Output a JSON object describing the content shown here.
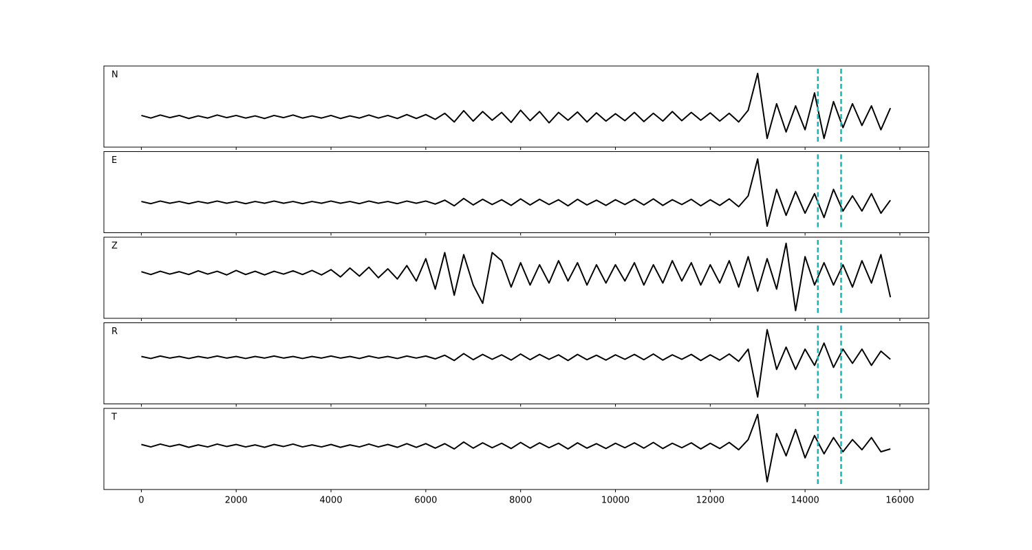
{
  "chart_data": {
    "type": "line",
    "x": [
      0,
      200,
      400,
      600,
      800,
      1000,
      1200,
      1400,
      1600,
      1800,
      2000,
      2200,
      2400,
      2600,
      2800,
      3000,
      3200,
      3400,
      3600,
      3800,
      4000,
      4200,
      4400,
      4600,
      4800,
      5000,
      5200,
      5400,
      5600,
      5800,
      6000,
      6200,
      6400,
      6600,
      6800,
      7000,
      7200,
      7400,
      7600,
      7800,
      8000,
      8200,
      8400,
      8600,
      8800,
      9000,
      9200,
      9400,
      9600,
      9800,
      10000,
      10200,
      10400,
      10600,
      10800,
      11000,
      11200,
      11400,
      11600,
      11800,
      12000,
      12200,
      12400,
      12600,
      12800,
      13000,
      13200,
      13400,
      13600,
      13800,
      14000,
      14200,
      14400,
      14600,
      14800,
      15000,
      15200,
      15400,
      15600,
      15800
    ],
    "xlim": [
      -790,
      16610
    ],
    "xticks": [
      0,
      2000,
      4000,
      6000,
      8000,
      10000,
      12000,
      14000,
      16000
    ],
    "vlines": [
      14270,
      14760
    ],
    "vline_color": "#00bfbf",
    "series": [
      {
        "name": "N",
        "color": "#000000",
        "ylim": [
          -0.7,
          1.17
        ],
        "values": [
          0.03,
          -0.03,
          0.04,
          -0.02,
          0.03,
          -0.04,
          0.02,
          -0.03,
          0.04,
          -0.02,
          0.03,
          -0.03,
          0.02,
          -0.04,
          0.03,
          -0.02,
          0.04,
          -0.03,
          0.02,
          -0.03,
          0.03,
          -0.04,
          0.02,
          -0.03,
          0.04,
          -0.03,
          0.03,
          -0.04,
          0.05,
          -0.04,
          0.05,
          -0.06,
          0.08,
          -0.12,
          0.14,
          -0.1,
          0.12,
          -0.08,
          0.1,
          -0.13,
          0.15,
          -0.09,
          0.12,
          -0.14,
          0.1,
          -0.08,
          0.11,
          -0.12,
          0.09,
          -0.1,
          0.07,
          -0.09,
          0.1,
          -0.11,
          0.08,
          -0.1,
          0.12,
          -0.09,
          0.1,
          -0.08,
          0.09,
          -0.1,
          0.08,
          -0.12,
          0.15,
          1.0,
          -0.5,
          0.3,
          -0.35,
          0.25,
          -0.3,
          0.55,
          -0.5,
          0.35,
          -0.25,
          0.3,
          -0.2,
          0.25,
          -0.3,
          0.2
        ]
      },
      {
        "name": "E",
        "color": "#000000",
        "ylim": [
          -0.7,
          1.17
        ],
        "values": [
          0.02,
          -0.03,
          0.03,
          -0.02,
          0.02,
          -0.03,
          0.02,
          -0.02,
          0.03,
          -0.02,
          0.02,
          -0.03,
          0.02,
          -0.02,
          0.03,
          -0.02,
          0.02,
          -0.03,
          0.02,
          -0.02,
          0.03,
          -0.02,
          0.02,
          -0.03,
          0.03,
          -0.02,
          0.02,
          -0.03,
          0.03,
          -0.02,
          0.03,
          -0.04,
          0.05,
          -0.08,
          0.09,
          -0.06,
          0.07,
          -0.05,
          0.06,
          -0.07,
          0.08,
          -0.06,
          0.07,
          -0.05,
          0.06,
          -0.08,
          0.07,
          -0.06,
          0.05,
          -0.07,
          0.06,
          -0.05,
          0.07,
          -0.06,
          0.08,
          -0.07,
          0.06,
          -0.05,
          0.07,
          -0.08,
          0.06,
          -0.07,
          0.08,
          -0.1,
          0.15,
          1.0,
          -0.55,
          0.3,
          -0.3,
          0.25,
          -0.25,
          0.2,
          -0.35,
          0.3,
          -0.2,
          0.15,
          -0.2,
          0.2,
          -0.25,
          0.05
        ]
      },
      {
        "name": "Z",
        "color": "#000000",
        "ylim": [
          -1.12,
          0.88
        ],
        "values": [
          0.03,
          -0.04,
          0.04,
          -0.03,
          0.03,
          -0.04,
          0.05,
          -0.03,
          0.04,
          -0.05,
          0.06,
          -0.04,
          0.04,
          -0.05,
          0.04,
          -0.03,
          0.05,
          -0.04,
          0.06,
          -0.05,
          0.08,
          -0.1,
          0.12,
          -0.08,
          0.14,
          -0.12,
          0.1,
          -0.15,
          0.18,
          -0.2,
          0.35,
          -0.4,
          0.5,
          -0.55,
          0.45,
          -0.3,
          -0.75,
          0.5,
          0.3,
          -0.35,
          0.25,
          -0.3,
          0.2,
          -0.25,
          0.3,
          -0.2,
          0.25,
          -0.3,
          0.2,
          -0.25,
          0.2,
          -0.2,
          0.25,
          -0.3,
          0.2,
          -0.25,
          0.3,
          -0.2,
          0.25,
          -0.3,
          0.2,
          -0.25,
          0.3,
          -0.35,
          0.4,
          -0.45,
          0.35,
          -0.4,
          0.73,
          -0.93,
          0.4,
          -0.3,
          0.25,
          -0.3,
          0.2,
          -0.35,
          0.3,
          -0.25,
          0.45,
          -0.6
        ]
      },
      {
        "name": "R",
        "color": "#000000",
        "ylim": [
          -1.15,
          0.85
        ],
        "values": [
          0.02,
          -0.03,
          0.03,
          -0.02,
          0.02,
          -0.03,
          0.02,
          -0.02,
          0.03,
          -0.02,
          0.02,
          -0.03,
          0.02,
          -0.02,
          0.03,
          -0.02,
          0.02,
          -0.03,
          0.02,
          -0.02,
          0.03,
          -0.02,
          0.02,
          -0.03,
          0.03,
          -0.02,
          0.02,
          -0.03,
          0.03,
          -0.02,
          0.03,
          -0.04,
          0.05,
          -0.08,
          0.09,
          -0.06,
          0.07,
          -0.05,
          0.06,
          -0.07,
          0.08,
          -0.06,
          0.07,
          -0.05,
          0.06,
          -0.08,
          0.07,
          -0.06,
          0.05,
          -0.07,
          0.06,
          -0.05,
          0.07,
          -0.06,
          0.08,
          -0.07,
          0.06,
          -0.05,
          0.07,
          -0.08,
          0.06,
          -0.07,
          0.08,
          -0.1,
          0.2,
          -0.98,
          0.68,
          -0.3,
          0.25,
          -0.3,
          0.2,
          -0.2,
          0.35,
          -0.25,
          0.2,
          -0.15,
          0.2,
          -0.2,
          0.15,
          -0.05
        ]
      },
      {
        "name": "T",
        "color": "#000000",
        "ylim": [
          -1.08,
          0.92
        ],
        "values": [
          0.03,
          -0.03,
          0.04,
          -0.02,
          0.03,
          -0.04,
          0.02,
          -0.03,
          0.04,
          -0.02,
          0.03,
          -0.03,
          0.02,
          -0.04,
          0.03,
          -0.02,
          0.04,
          -0.03,
          0.02,
          -0.03,
          0.03,
          -0.04,
          0.02,
          -0.03,
          0.04,
          -0.03,
          0.03,
          -0.04,
          0.05,
          -0.04,
          0.05,
          -0.06,
          0.05,
          -0.08,
          0.09,
          -0.06,
          0.07,
          -0.05,
          0.06,
          -0.07,
          0.08,
          -0.06,
          0.07,
          -0.05,
          0.06,
          -0.08,
          0.07,
          -0.06,
          0.05,
          -0.07,
          0.06,
          -0.05,
          0.07,
          -0.06,
          0.08,
          -0.07,
          0.06,
          -0.05,
          0.07,
          -0.08,
          0.06,
          -0.07,
          0.08,
          -0.1,
          0.15,
          0.77,
          -0.89,
          0.3,
          -0.25,
          0.4,
          -0.3,
          0.25,
          -0.2,
          0.2,
          -0.15,
          0.15,
          -0.1,
          0.2,
          -0.15,
          -0.08
        ]
      }
    ]
  }
}
